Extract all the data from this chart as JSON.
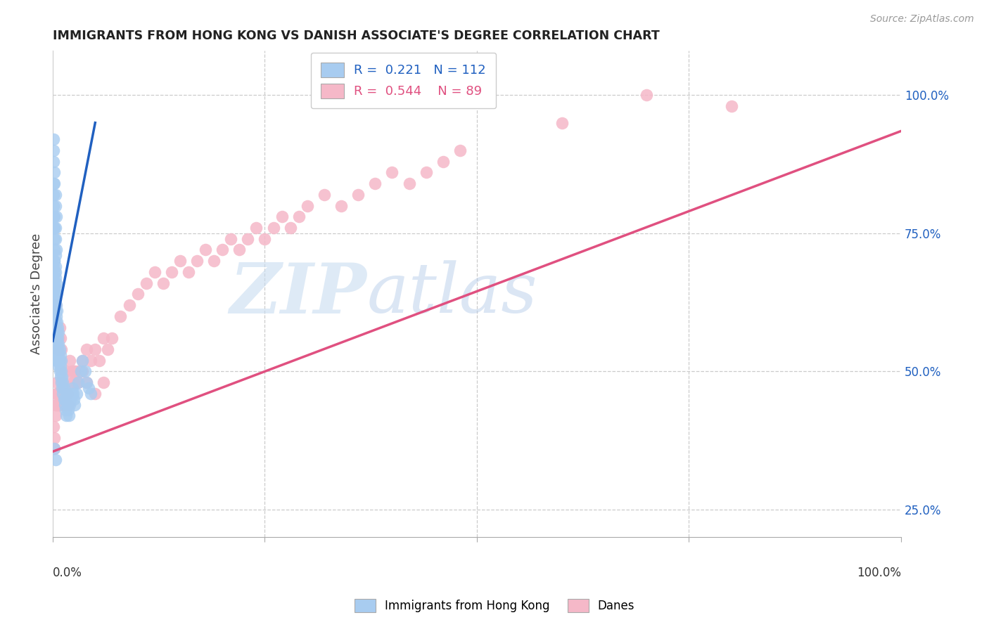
{
  "title": "IMMIGRANTS FROM HONG KONG VS DANISH ASSOCIATE'S DEGREE CORRELATION CHART",
  "source": "Source: ZipAtlas.com",
  "ylabel": "Associate's Degree",
  "right_yticks": [
    "25.0%",
    "50.0%",
    "75.0%",
    "100.0%"
  ],
  "right_ytick_vals": [
    0.25,
    0.5,
    0.75,
    1.0
  ],
  "legend_blue_label": "Immigrants from Hong Kong",
  "legend_pink_label": "Danes",
  "blue_R": 0.221,
  "blue_N": 112,
  "pink_R": 0.544,
  "pink_N": 89,
  "blue_color": "#A8CCF0",
  "pink_color": "#F5B8C8",
  "blue_line_color": "#2060C0",
  "pink_line_color": "#E05080",
  "ylim_min": 0.2,
  "ylim_max": 1.08,
  "xlim_min": 0.0,
  "xlim_max": 1.0,
  "blue_line_x0": 0.0,
  "blue_line_y0": 0.555,
  "blue_line_x1": 0.05,
  "blue_line_y1": 0.95,
  "pink_line_x0": 0.0,
  "pink_line_y0": 0.355,
  "pink_line_x1": 1.0,
  "pink_line_y1": 0.935,
  "blue_points_x": [
    0.001,
    0.001,
    0.001,
    0.001,
    0.001,
    0.001,
    0.001,
    0.002,
    0.002,
    0.002,
    0.002,
    0.002,
    0.002,
    0.002,
    0.002,
    0.002,
    0.002,
    0.002,
    0.003,
    0.003,
    0.003,
    0.003,
    0.003,
    0.003,
    0.003,
    0.003,
    0.003,
    0.004,
    0.004,
    0.004,
    0.004,
    0.004,
    0.004,
    0.005,
    0.005,
    0.005,
    0.005,
    0.005,
    0.006,
    0.006,
    0.006,
    0.006,
    0.007,
    0.007,
    0.007,
    0.007,
    0.008,
    0.008,
    0.008,
    0.009,
    0.009,
    0.009,
    0.01,
    0.01,
    0.01,
    0.011,
    0.011,
    0.012,
    0.012,
    0.013,
    0.013,
    0.014,
    0.015,
    0.015,
    0.016,
    0.017,
    0.018,
    0.019,
    0.02,
    0.021,
    0.022,
    0.023,
    0.024,
    0.025,
    0.026,
    0.028,
    0.03,
    0.033,
    0.035,
    0.038,
    0.04,
    0.042,
    0.045,
    0.001,
    0.001,
    0.001,
    0.002,
    0.002,
    0.003,
    0.003,
    0.004,
    0.002,
    0.002,
    0.003,
    0.003,
    0.004,
    0.002,
    0.003,
    0.004,
    0.004,
    0.002,
    0.003,
    0.001,
    0.001,
    0.001,
    0.001,
    0.001,
    0.002,
    0.002,
    0.003,
    0.003,
    0.004
  ],
  "blue_points_y": [
    0.57,
    0.59,
    0.61,
    0.63,
    0.65,
    0.67,
    0.69,
    0.56,
    0.58,
    0.6,
    0.62,
    0.64,
    0.66,
    0.68,
    0.7,
    0.72,
    0.74,
    0.76,
    0.55,
    0.57,
    0.59,
    0.61,
    0.63,
    0.65,
    0.67,
    0.69,
    0.71,
    0.54,
    0.56,
    0.58,
    0.6,
    0.62,
    0.64,
    0.53,
    0.55,
    0.57,
    0.59,
    0.61,
    0.52,
    0.54,
    0.56,
    0.58,
    0.51,
    0.53,
    0.55,
    0.57,
    0.5,
    0.52,
    0.54,
    0.49,
    0.51,
    0.53,
    0.48,
    0.5,
    0.52,
    0.47,
    0.49,
    0.46,
    0.48,
    0.45,
    0.47,
    0.44,
    0.43,
    0.45,
    0.42,
    0.44,
    0.43,
    0.42,
    0.44,
    0.45,
    0.46,
    0.47,
    0.46,
    0.45,
    0.44,
    0.46,
    0.48,
    0.5,
    0.52,
    0.5,
    0.48,
    0.47,
    0.46,
    0.88,
    0.9,
    0.92,
    0.84,
    0.86,
    0.8,
    0.82,
    0.78,
    0.76,
    0.78,
    0.74,
    0.76,
    0.72,
    0.7,
    0.68,
    0.66,
    0.64,
    0.36,
    0.34,
    0.82,
    0.84,
    0.78,
    0.8,
    0.76,
    0.6,
    0.58,
    0.56,
    0.54,
    0.52
  ],
  "pink_points_x": [
    0.001,
    0.002,
    0.003,
    0.003,
    0.004,
    0.004,
    0.005,
    0.005,
    0.006,
    0.007,
    0.007,
    0.008,
    0.009,
    0.01,
    0.011,
    0.012,
    0.013,
    0.014,
    0.015,
    0.016,
    0.017,
    0.018,
    0.02,
    0.022,
    0.024,
    0.026,
    0.028,
    0.03,
    0.035,
    0.04,
    0.045,
    0.05,
    0.055,
    0.06,
    0.065,
    0.07,
    0.08,
    0.09,
    0.1,
    0.11,
    0.12,
    0.13,
    0.14,
    0.15,
    0.16,
    0.17,
    0.18,
    0.19,
    0.2,
    0.21,
    0.22,
    0.23,
    0.24,
    0.25,
    0.26,
    0.27,
    0.28,
    0.29,
    0.3,
    0.32,
    0.34,
    0.36,
    0.38,
    0.4,
    0.42,
    0.44,
    0.46,
    0.48,
    0.002,
    0.003,
    0.004,
    0.005,
    0.006,
    0.007,
    0.008,
    0.009,
    0.01,
    0.015,
    0.02,
    0.025,
    0.03,
    0.035,
    0.04,
    0.05,
    0.06,
    0.002,
    0.6,
    0.7,
    0.8
  ],
  "pink_points_y": [
    0.4,
    0.38,
    0.44,
    0.42,
    0.46,
    0.44,
    0.48,
    0.46,
    0.44,
    0.46,
    0.44,
    0.46,
    0.44,
    0.48,
    0.46,
    0.44,
    0.46,
    0.44,
    0.46,
    0.44,
    0.46,
    0.44,
    0.48,
    0.5,
    0.48,
    0.5,
    0.48,
    0.5,
    0.52,
    0.54,
    0.52,
    0.54,
    0.52,
    0.56,
    0.54,
    0.56,
    0.6,
    0.62,
    0.64,
    0.66,
    0.68,
    0.66,
    0.68,
    0.7,
    0.68,
    0.7,
    0.72,
    0.7,
    0.72,
    0.74,
    0.72,
    0.74,
    0.76,
    0.74,
    0.76,
    0.78,
    0.76,
    0.78,
    0.8,
    0.82,
    0.8,
    0.82,
    0.84,
    0.86,
    0.84,
    0.86,
    0.88,
    0.9,
    0.6,
    0.62,
    0.58,
    0.56,
    0.54,
    0.56,
    0.58,
    0.56,
    0.54,
    0.5,
    0.52,
    0.5,
    0.48,
    0.5,
    0.48,
    0.46,
    0.48,
    0.36,
    0.95,
    1.0,
    0.98
  ]
}
